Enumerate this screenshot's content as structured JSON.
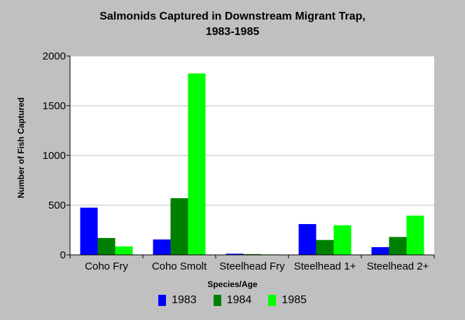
{
  "chart_data": {
    "type": "bar",
    "title": [
      "Salmonids Captured in Downstream Migrant Trap,",
      "1983-1985"
    ],
    "xlabel": "Species/Age",
    "ylabel": "Number of Fish Captured",
    "categories": [
      "Coho Fry",
      "Coho Smolt",
      "Steelhead Fry",
      "Steelhead 1+",
      "Steelhead 2+"
    ],
    "series": [
      {
        "name": "1983",
        "color": "#0000ff",
        "values": [
          475,
          155,
          12,
          310,
          78
        ]
      },
      {
        "name": "1984",
        "color": "#008000",
        "values": [
          170,
          570,
          8,
          150,
          180
        ]
      },
      {
        "name": "1985",
        "color": "#00ff00",
        "values": [
          85,
          1825,
          5,
          298,
          395
        ]
      }
    ],
    "ylim": [
      0,
      2000
    ],
    "yticks": [
      "0",
      "500",
      "1000",
      "1500",
      "2000"
    ],
    "grid": true,
    "legend_position": "bottom"
  }
}
